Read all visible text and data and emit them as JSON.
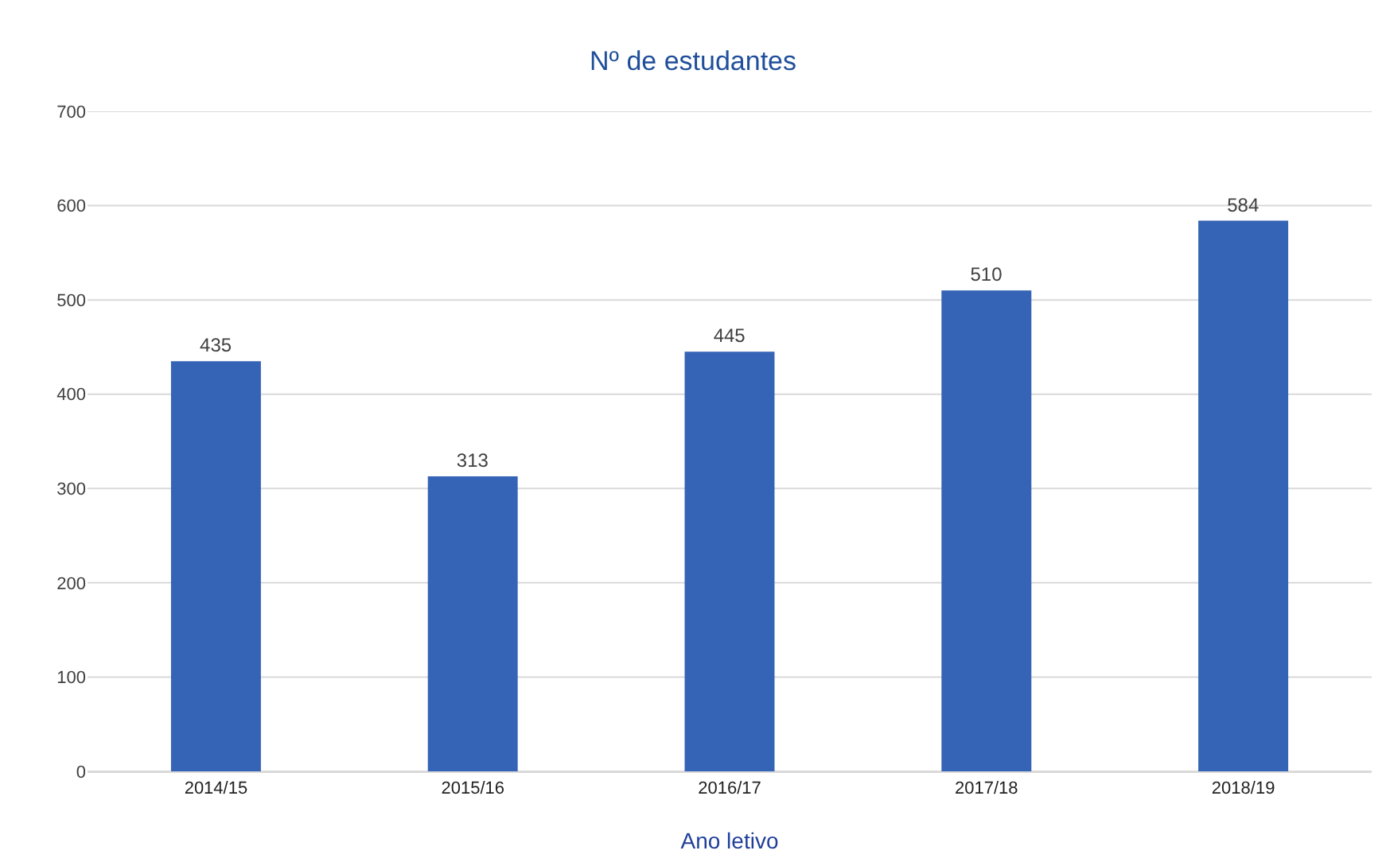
{
  "chart_data": {
    "type": "bar",
    "title": "Nº de estudantes",
    "xlabel": "Ano letivo",
    "categories": [
      "2014/15",
      "2015/16",
      "2016/17",
      "2017/18",
      "2018/19"
    ],
    "values": [
      435,
      313,
      445,
      510,
      584
    ],
    "color": "#3563b5",
    "ylim": [
      0,
      700
    ],
    "yticks": [
      0,
      100,
      200,
      300,
      400,
      500,
      600,
      700
    ],
    "grid": "y",
    "data_labels": true
  }
}
